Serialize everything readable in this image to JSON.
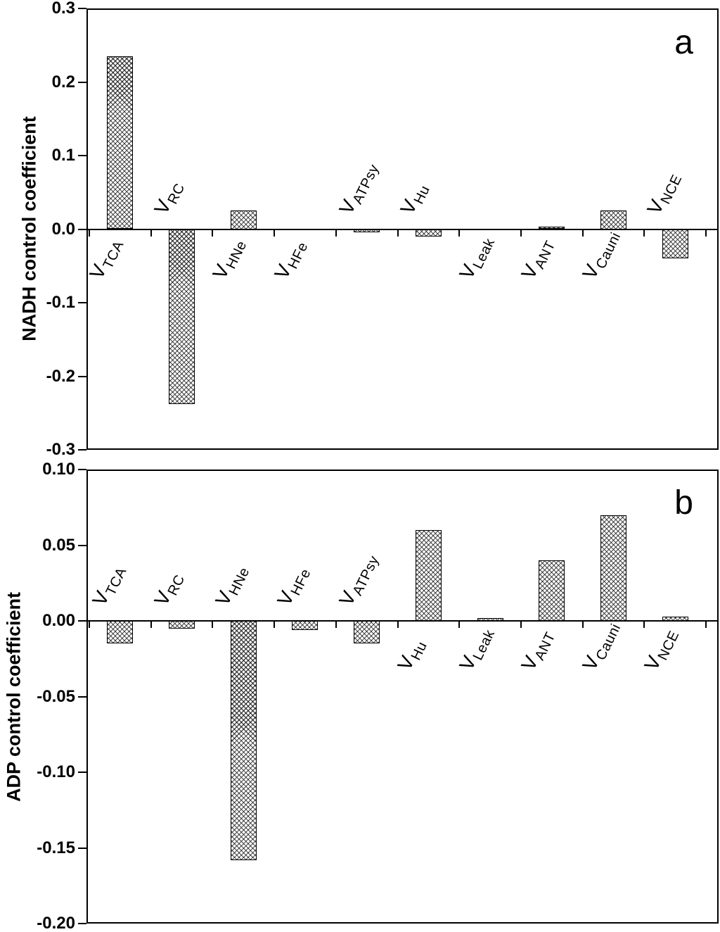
{
  "figure": {
    "background": "#ffffff",
    "colors": {
      "axis": "#000000",
      "bar_fill": "#ffffff",
      "bar_hatch": "#2a2a2a",
      "text": "#000000"
    },
    "panels": [
      {
        "letter": "a",
        "ylabel": "NADH control coefficient"
      },
      {
        "letter": "b",
        "ylabel": "ADP control coefficient"
      }
    ]
  },
  "chart_data": [
    {
      "type": "bar",
      "panel_letter": "a",
      "title": "",
      "xlabel": "",
      "ylabel": "NADH control coefficient",
      "ylim": [
        -0.3,
        0.3
      ],
      "yticks": [
        "0.3",
        "0.2",
        "0.1",
        "0.0",
        "-0.1",
        "-0.2",
        "-0.3"
      ],
      "grid": false,
      "legend": false,
      "bar_pattern": "diagonal-crosshatch",
      "categories": [
        {
          "base": "V",
          "sub": "TCA"
        },
        {
          "base": "V",
          "sub": "RC"
        },
        {
          "base": "V",
          "sub": "HNe"
        },
        {
          "base": "V",
          "sub": "HFe"
        },
        {
          "base": "V",
          "sub": "ATPsy"
        },
        {
          "base": "V",
          "sub": "Hu"
        },
        {
          "base": "V",
          "sub": "Leak"
        },
        {
          "base": "V",
          "sub": "ANT"
        },
        {
          "base": "V",
          "sub": "Cauni"
        },
        {
          "base": "V",
          "sub": "NCE"
        }
      ],
      "values": [
        0.235,
        -0.238,
        0.025,
        0.0,
        -0.004,
        -0.01,
        0.0,
        0.003,
        0.025,
        -0.04
      ]
    },
    {
      "type": "bar",
      "panel_letter": "b",
      "title": "",
      "xlabel": "",
      "ylabel": "ADP control coefficient",
      "ylim": [
        -0.2,
        0.1
      ],
      "yticks": [
        "0.10",
        "0.05",
        "0.00",
        "-0.05",
        "-0.10",
        "-0.15",
        "-0.20"
      ],
      "grid": false,
      "legend": false,
      "bar_pattern": "diagonal-crosshatch",
      "categories": [
        {
          "base": "V",
          "sub": "TCA"
        },
        {
          "base": "V",
          "sub": "RC"
        },
        {
          "base": "V",
          "sub": "HNe"
        },
        {
          "base": "V",
          "sub": "HFe"
        },
        {
          "base": "V",
          "sub": "ATPsy"
        },
        {
          "base": "V",
          "sub": "Hu"
        },
        {
          "base": "V",
          "sub": "Leak"
        },
        {
          "base": "V",
          "sub": "ANT"
        },
        {
          "base": "V",
          "sub": "Cauni"
        },
        {
          "base": "V",
          "sub": "NCE"
        }
      ],
      "values": [
        -0.015,
        -0.005,
        -0.158,
        -0.006,
        -0.015,
        0.06,
        0.002,
        0.04,
        0.07,
        0.003
      ]
    }
  ]
}
